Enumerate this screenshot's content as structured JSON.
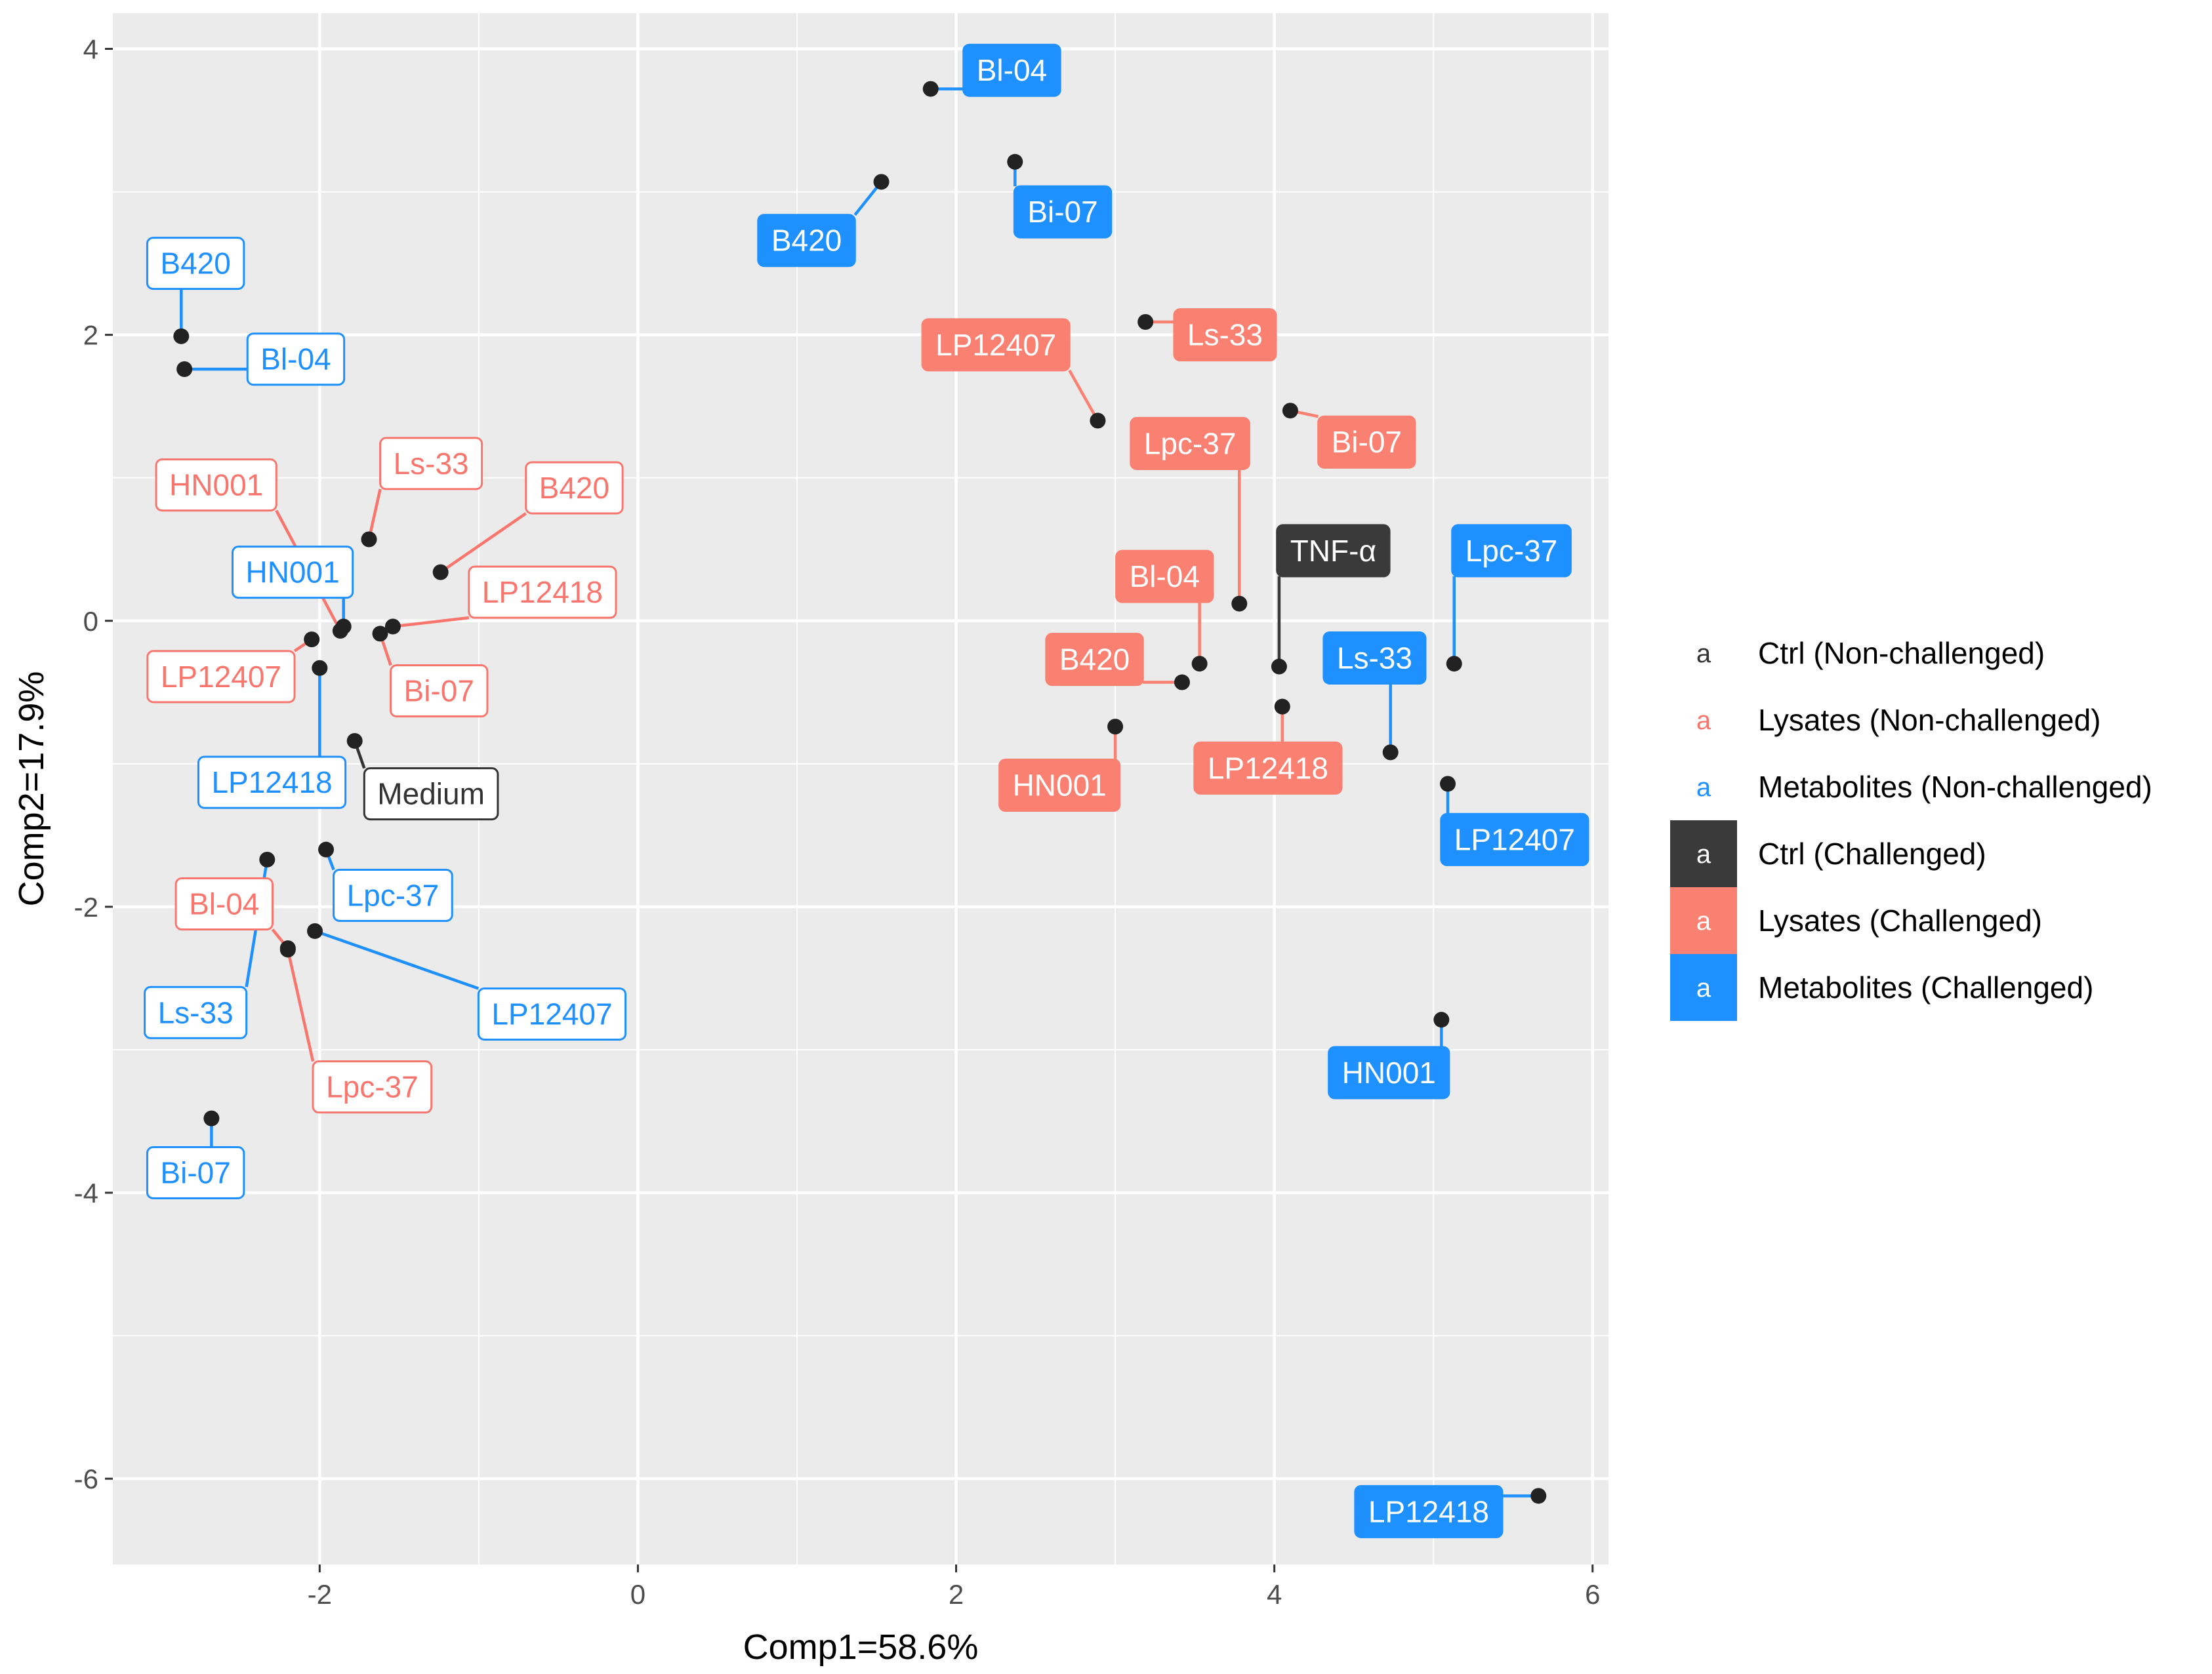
{
  "chart_data": {
    "type": "scatter",
    "xlabel": "Comp1=58.6%",
    "ylabel": "Comp2=17.9%",
    "xlim": [
      -3.3,
      6.1
    ],
    "ylim": [
      -6.6,
      4.25
    ],
    "xticks": [
      -2,
      0,
      2,
      4,
      6
    ],
    "yticks": [
      -6,
      -4,
      -2,
      0,
      2,
      4
    ],
    "xtick_labels": [
      "-2",
      "0",
      "2",
      "4",
      "6"
    ],
    "ytick_labels": [
      "-6",
      "-4",
      "-2",
      "0",
      "2",
      "4"
    ],
    "grid": true,
    "legend_position": "right",
    "legend_key_glyph": "a",
    "groups": [
      {
        "name": "Ctrl (Non-challenged)",
        "color": "#333333",
        "filled": false
      },
      {
        "name": "Lysates (Non-challenged)",
        "color": "#F8766D",
        "filled": false
      },
      {
        "name": "Metabolites (Non-challenged)",
        "color": "#1E90FF",
        "filled": false
      },
      {
        "name": "Ctrl (Challenged)",
        "color": "#3A3A3A",
        "filled": true
      },
      {
        "name": "Lysates (Challenged)",
        "color": "#FA8072",
        "filled": true
      },
      {
        "name": "Metabolites (Challenged)",
        "color": "#1E90FF",
        "filled": true
      }
    ],
    "points": [
      {
        "label": "B420",
        "group": 2,
        "x": -2.87,
        "y": 1.99,
        "lx": -2.78,
        "ly": 2.5
      },
      {
        "label": "Bl-04",
        "group": 2,
        "x": -2.85,
        "y": 1.76,
        "lx": -2.15,
        "ly": 1.83
      },
      {
        "label": "HN001",
        "group": 1,
        "x": -1.87,
        "y": -0.07,
        "lx": -2.65,
        "ly": 0.95
      },
      {
        "label": "Ls-33",
        "group": 1,
        "x": -1.69,
        "y": 0.57,
        "lx": -1.3,
        "ly": 1.1
      },
      {
        "label": "B420",
        "group": 1,
        "x": -1.24,
        "y": 0.34,
        "lx": -0.4,
        "ly": 0.93
      },
      {
        "label": "HN001",
        "group": 2,
        "x": -1.85,
        "y": -0.04,
        "lx": -2.17,
        "ly": 0.34
      },
      {
        "label": "LP12418",
        "group": 1,
        "x": -1.54,
        "y": -0.04,
        "lx": -0.6,
        "ly": 0.2
      },
      {
        "label": "Bi-07",
        "group": 1,
        "x": -1.62,
        "y": -0.09,
        "lx": -1.25,
        "ly": -0.49
      },
      {
        "label": "LP12407",
        "group": 1,
        "x": -2.05,
        "y": -0.13,
        "lx": -2.62,
        "ly": -0.39
      },
      {
        "label": "LP12418",
        "group": 2,
        "x": -2.0,
        "y": -0.33,
        "lx": -2.3,
        "ly": -1.13
      },
      {
        "label": "Medium",
        "group": 0,
        "x": -1.78,
        "y": -0.84,
        "lx": -1.3,
        "ly": -1.21
      },
      {
        "label": "Bl-04",
        "group": 1,
        "x": -2.2,
        "y": -2.29,
        "lx": -2.6,
        "ly": -1.98
      },
      {
        "label": "Lpc-37",
        "group": 2,
        "x": -1.96,
        "y": -1.6,
        "lx": -1.54,
        "ly": -1.92
      },
      {
        "label": "Ls-33",
        "group": 2,
        "x": -2.33,
        "y": -1.67,
        "lx": -2.78,
        "ly": -2.74
      },
      {
        "label": "LP12407",
        "group": 2,
        "x": -2.03,
        "y": -2.17,
        "lx": -0.54,
        "ly": -2.75
      },
      {
        "label": "Lpc-37",
        "group": 1,
        "x": -2.2,
        "y": -2.3,
        "lx": -1.67,
        "ly": -3.26
      },
      {
        "label": "Bi-07",
        "group": 2,
        "x": -2.68,
        "y": -3.48,
        "lx": -2.78,
        "ly": -3.86
      },
      {
        "label": "Bl-04",
        "group": 5,
        "x": 1.84,
        "y": 3.72,
        "lx": 2.35,
        "ly": 3.85
      },
      {
        "label": "Bi-07",
        "group": 5,
        "x": 2.37,
        "y": 3.21,
        "lx": 2.67,
        "ly": 2.86
      },
      {
        "label": "B420",
        "group": 5,
        "x": 1.53,
        "y": 3.07,
        "lx": 1.06,
        "ly": 2.66
      },
      {
        "label": "Ls-33",
        "group": 4,
        "x": 3.19,
        "y": 2.09,
        "lx": 3.69,
        "ly": 2.0
      },
      {
        "label": "LP12407",
        "group": 4,
        "x": 2.89,
        "y": 1.4,
        "lx": 2.25,
        "ly": 1.93
      },
      {
        "label": "Bi-07",
        "group": 4,
        "x": 4.1,
        "y": 1.47,
        "lx": 4.58,
        "ly": 1.25
      },
      {
        "label": "Lpc-37",
        "group": 4,
        "x": 3.78,
        "y": 0.12,
        "lx": 3.47,
        "ly": 1.24
      },
      {
        "label": "Bl-04",
        "group": 4,
        "x": 3.53,
        "y": -0.3,
        "lx": 3.31,
        "ly": 0.31
      },
      {
        "label": "B420",
        "group": 4,
        "x": 3.42,
        "y": -0.43,
        "lx": 2.87,
        "ly": -0.27
      },
      {
        "label": "HN001",
        "group": 4,
        "x": 3.0,
        "y": -0.74,
        "lx": 2.65,
        "ly": -1.15
      },
      {
        "label": "TNF-α",
        "group": 3,
        "x": 4.03,
        "y": -0.32,
        "lx": 4.37,
        "ly": 0.49
      },
      {
        "label": "LP12418",
        "group": 4,
        "x": 4.05,
        "y": -0.6,
        "lx": 3.96,
        "ly": -1.03
      },
      {
        "label": "Ls-33",
        "group": 5,
        "x": 4.73,
        "y": -0.92,
        "lx": 4.63,
        "ly": -0.26
      },
      {
        "label": "Lpc-37",
        "group": 5,
        "x": 5.13,
        "y": -0.3,
        "lx": 5.49,
        "ly": 0.49
      },
      {
        "label": "LP12407",
        "group": 5,
        "x": 5.09,
        "y": -1.14,
        "lx": 5.51,
        "ly": -1.53
      },
      {
        "label": "HN001",
        "group": 5,
        "x": 5.05,
        "y": -2.79,
        "lx": 4.72,
        "ly": -3.16
      },
      {
        "label": "LP12418",
        "group": 5,
        "x": 5.66,
        "y": -6.12,
        "lx": 4.97,
        "ly": -6.23
      }
    ]
  }
}
